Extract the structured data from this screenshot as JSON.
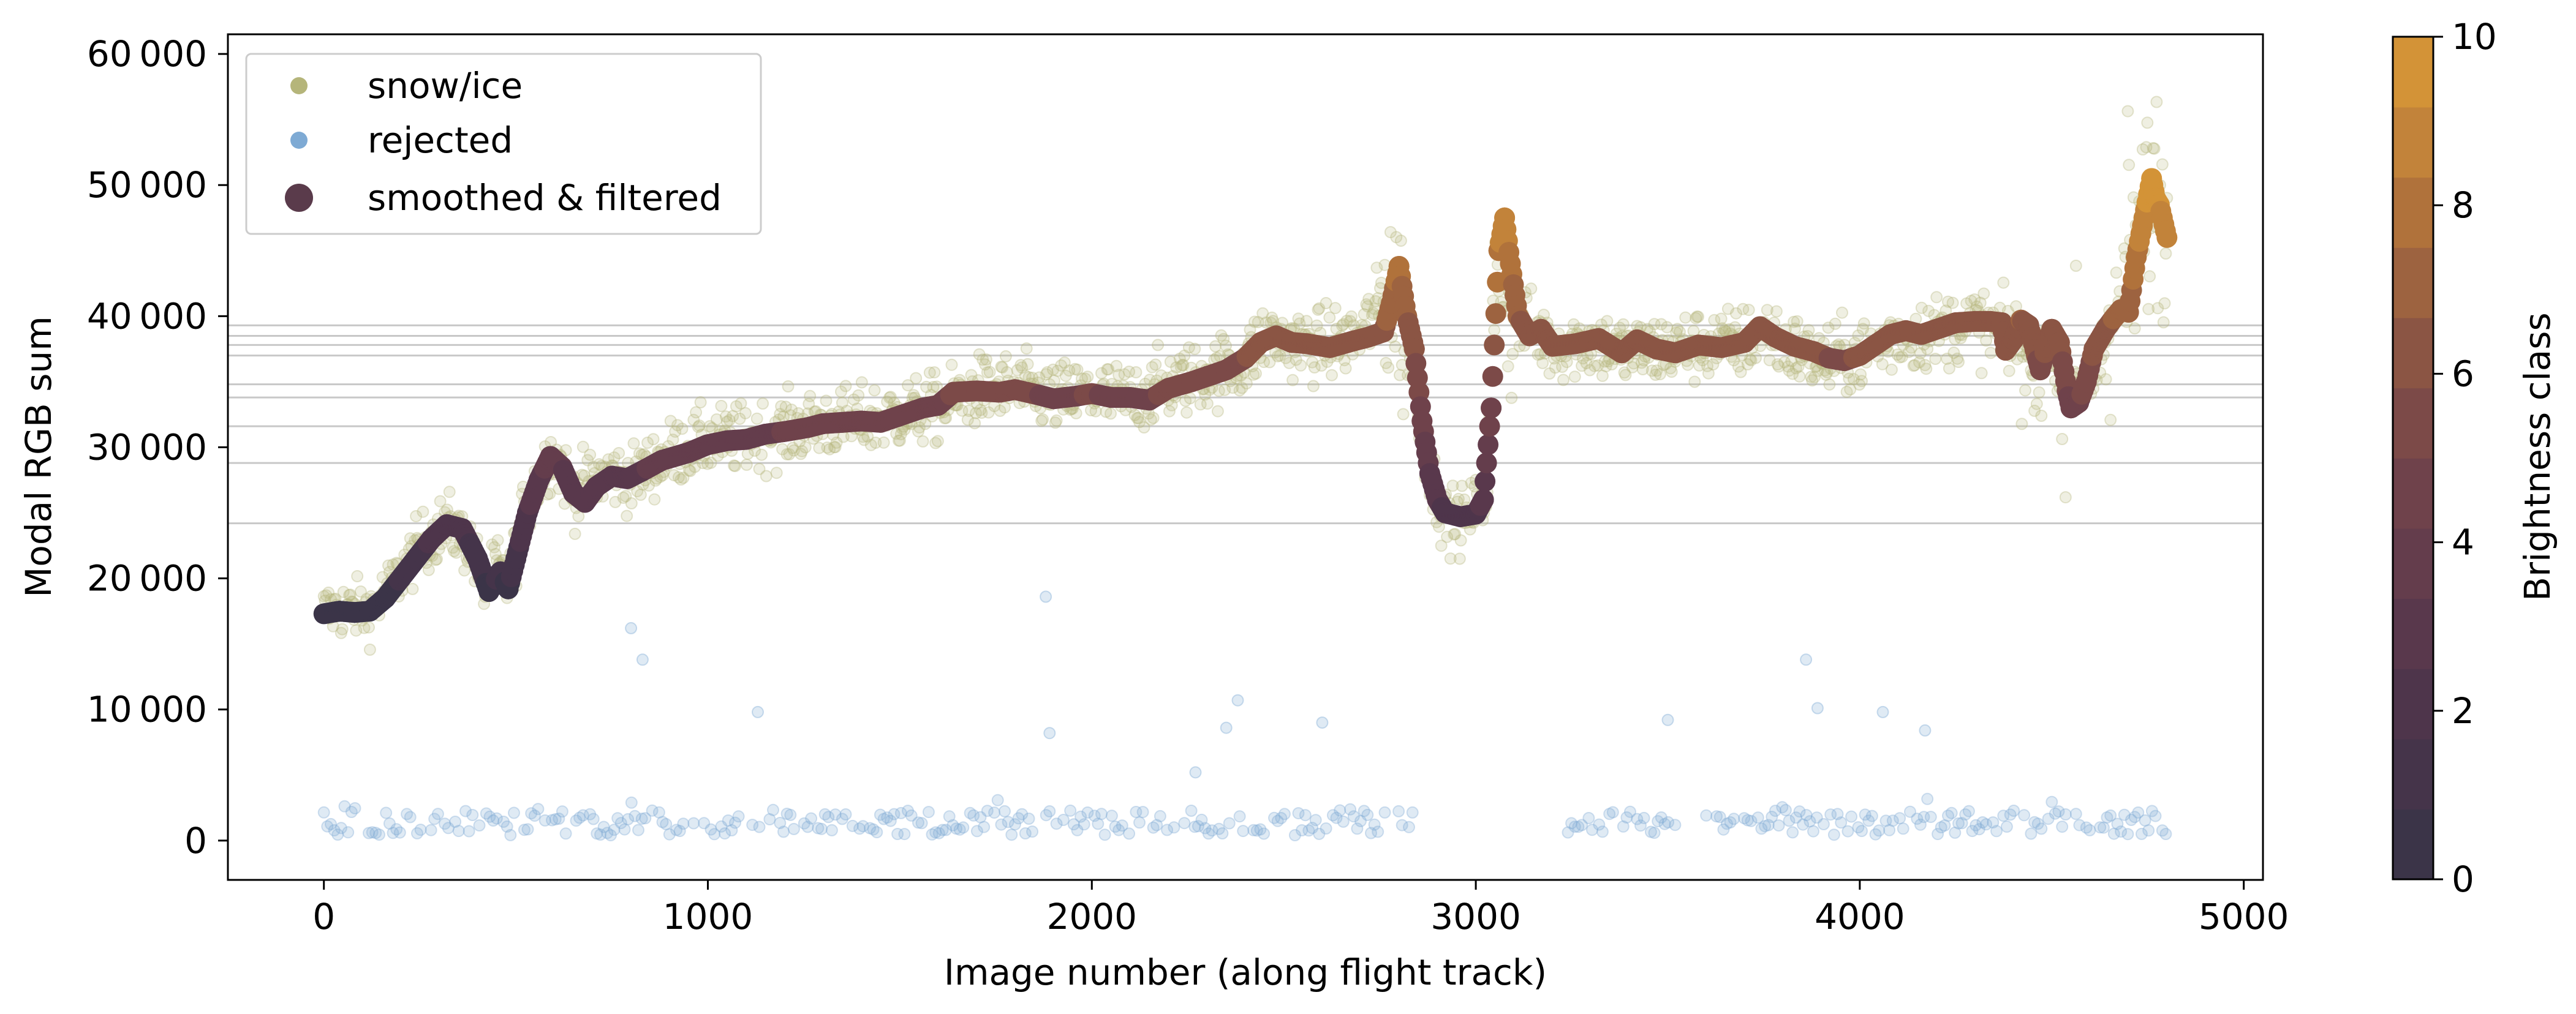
{
  "chart_data": {
    "type": "scatter",
    "xlabel": "Image number (along flight track)",
    "ylabel": "Modal RGB sum",
    "xlim": [
      -250,
      5050
    ],
    "ylim": [
      -3000,
      61500
    ],
    "x_ticks": [
      0,
      1000,
      2000,
      3000,
      4000,
      5000
    ],
    "x_tick_labels": [
      "0",
      "1000",
      "2000",
      "3000",
      "4000",
      "5000"
    ],
    "y_ticks": [
      0,
      10000,
      20000,
      30000,
      40000,
      50000,
      60000
    ],
    "y_tick_labels": [
      "0",
      "10 000",
      "20 000",
      "30 000",
      "40 000",
      "50 000",
      "60 000"
    ],
    "legend_position": "top-left",
    "grid": false,
    "class_threshold_lines": [
      24200,
      28800,
      31600,
      33800,
      34800,
      37000,
      37800,
      38500,
      39300
    ],
    "series": [
      {
        "name": "snow/ice",
        "style": "scatter",
        "color": "#b5b57a",
        "alpha": 0.3,
        "description_points": [
          [
            0,
            17500
          ],
          [
            60,
            17700
          ],
          [
            120,
            17500
          ],
          [
            180,
            19500
          ],
          [
            250,
            22500
          ],
          [
            320,
            24200
          ],
          [
            380,
            22500
          ],
          [
            420,
            19000
          ],
          [
            450,
            21000
          ],
          [
            480,
            19500
          ],
          [
            520,
            25000
          ],
          [
            580,
            29000
          ],
          [
            600,
            29500
          ],
          [
            650,
            26500
          ],
          [
            700,
            27500
          ],
          [
            750,
            28000
          ],
          [
            800,
            27500
          ],
          [
            900,
            29500
          ],
          [
            1000,
            30500
          ],
          [
            1100,
            30700
          ],
          [
            1200,
            31300
          ],
          [
            1300,
            31800
          ],
          [
            1400,
            32000
          ],
          [
            1500,
            32500
          ],
          [
            1600,
            33000
          ],
          [
            1700,
            34300
          ],
          [
            1800,
            34500
          ],
          [
            1900,
            33800
          ],
          [
            2000,
            34000
          ],
          [
            2100,
            33700
          ],
          [
            2200,
            34800
          ],
          [
            2300,
            35600
          ],
          [
            2400,
            36500
          ],
          [
            2450,
            38500
          ],
          [
            2500,
            38000
          ],
          [
            2600,
            37800
          ],
          [
            2700,
            38500
          ],
          [
            2780,
            42500
          ],
          [
            2830,
            37000
          ],
          [
            2880,
            28000
          ],
          [
            2920,
            24500
          ],
          [
            2980,
            24500
          ],
          [
            3030,
            27000
          ],
          [
            3060,
            46000
          ],
          [
            3100,
            40000
          ],
          [
            3200,
            37800
          ],
          [
            3300,
            38000
          ],
          [
            3400,
            37200
          ],
          [
            3500,
            37500
          ],
          [
            3600,
            37800
          ],
          [
            3700,
            38000
          ],
          [
            3750,
            39000
          ],
          [
            3800,
            37800
          ],
          [
            3900,
            36500
          ],
          [
            4000,
            37000
          ],
          [
            4100,
            38500
          ],
          [
            4200,
            38800
          ],
          [
            4300,
            39500
          ],
          [
            4380,
            38500
          ],
          [
            4420,
            38000
          ],
          [
            4450,
            36000
          ],
          [
            4500,
            38000
          ],
          [
            4550,
            33500
          ],
          [
            4600,
            35000
          ],
          [
            4650,
            39000
          ],
          [
            4700,
            43000
          ],
          [
            4750,
            48000
          ],
          [
            4780,
            50000
          ],
          [
            4800,
            46500
          ]
        ]
      },
      {
        "name": "rejected",
        "style": "scatter",
        "color": "#7eaad4",
        "alpha": 0.3,
        "x_range": [
          0,
          4800
        ],
        "typical_y_range": [
          0,
          3000
        ],
        "outliers": [
          [
            800,
            16200
          ],
          [
            830,
            13800
          ],
          [
            1130,
            9800
          ],
          [
            1880,
            18600
          ],
          [
            1890,
            8200
          ],
          [
            2270,
            5200
          ],
          [
            2350,
            8600
          ],
          [
            2380,
            10700
          ],
          [
            2600,
            9000
          ],
          [
            3500,
            9200
          ],
          [
            3860,
            13800
          ],
          [
            3890,
            10100
          ],
          [
            4060,
            9800
          ],
          [
            4170,
            8400
          ]
        ]
      },
      {
        "name": "smoothed & filtered",
        "style": "line",
        "color_scale": "Brightness class",
        "points": [
          [
            0,
            17300
          ],
          [
            40,
            17500
          ],
          [
            80,
            17400
          ],
          [
            120,
            17500
          ],
          [
            160,
            18500
          ],
          [
            200,
            20000
          ],
          [
            240,
            21500
          ],
          [
            280,
            23000
          ],
          [
            320,
            24100
          ],
          [
            360,
            23800
          ],
          [
            400,
            21500
          ],
          [
            430,
            19000
          ],
          [
            460,
            20500
          ],
          [
            480,
            19200
          ],
          [
            500,
            21500
          ],
          [
            530,
            25000
          ],
          [
            560,
            27500
          ],
          [
            590,
            29300
          ],
          [
            620,
            28500
          ],
          [
            650,
            26500
          ],
          [
            680,
            25800
          ],
          [
            710,
            27000
          ],
          [
            750,
            27800
          ],
          [
            790,
            27600
          ],
          [
            830,
            28200
          ],
          [
            880,
            29000
          ],
          [
            950,
            29600
          ],
          [
            1000,
            30200
          ],
          [
            1050,
            30500
          ],
          [
            1100,
            30600
          ],
          [
            1150,
            31000
          ],
          [
            1200,
            31200
          ],
          [
            1260,
            31500
          ],
          [
            1300,
            31800
          ],
          [
            1350,
            31900
          ],
          [
            1400,
            32000
          ],
          [
            1450,
            31900
          ],
          [
            1500,
            32400
          ],
          [
            1560,
            33000
          ],
          [
            1600,
            33200
          ],
          [
            1640,
            34200
          ],
          [
            1700,
            34300
          ],
          [
            1760,
            34200
          ],
          [
            1800,
            34400
          ],
          [
            1860,
            34000
          ],
          [
            1900,
            33700
          ],
          [
            1960,
            33900
          ],
          [
            2000,
            34100
          ],
          [
            2050,
            33800
          ],
          [
            2100,
            33800
          ],
          [
            2150,
            33600
          ],
          [
            2200,
            34500
          ],
          [
            2260,
            35000
          ],
          [
            2300,
            35400
          ],
          [
            2350,
            35900
          ],
          [
            2400,
            36800
          ],
          [
            2440,
            38000
          ],
          [
            2480,
            38500
          ],
          [
            2520,
            38000
          ],
          [
            2560,
            37900
          ],
          [
            2620,
            37600
          ],
          [
            2680,
            38100
          ],
          [
            2720,
            38400
          ],
          [
            2760,
            38800
          ],
          [
            2780,
            41000
          ],
          [
            2800,
            43800
          ],
          [
            2820,
            40000
          ],
          [
            2840,
            37500
          ],
          [
            2860,
            32000
          ],
          [
            2880,
            28000
          ],
          [
            2900,
            26000
          ],
          [
            2920,
            25000
          ],
          [
            2960,
            24700
          ],
          [
            3000,
            24900
          ],
          [
            3020,
            26000
          ],
          [
            3040,
            33000
          ],
          [
            3060,
            45000
          ],
          [
            3075,
            47500
          ],
          [
            3090,
            44000
          ],
          [
            3110,
            40000
          ],
          [
            3140,
            38500
          ],
          [
            3170,
            39000
          ],
          [
            3200,
            37700
          ],
          [
            3260,
            37900
          ],
          [
            3320,
            38300
          ],
          [
            3380,
            37200
          ],
          [
            3420,
            38200
          ],
          [
            3470,
            37500
          ],
          [
            3520,
            37200
          ],
          [
            3580,
            37800
          ],
          [
            3640,
            37600
          ],
          [
            3700,
            38000
          ],
          [
            3740,
            39200
          ],
          [
            3780,
            38400
          ],
          [
            3830,
            37700
          ],
          [
            3880,
            37300
          ],
          [
            3920,
            36800
          ],
          [
            3960,
            36600
          ],
          [
            4000,
            37000
          ],
          [
            4040,
            37800
          ],
          [
            4080,
            38600
          ],
          [
            4120,
            38900
          ],
          [
            4160,
            38600
          ],
          [
            4200,
            39000
          ],
          [
            4250,
            39500
          ],
          [
            4300,
            39600
          ],
          [
            4340,
            39600
          ],
          [
            4370,
            39500
          ],
          [
            4380,
            37400
          ],
          [
            4400,
            38200
          ],
          [
            4420,
            39700
          ],
          [
            4440,
            39300
          ],
          [
            4460,
            37000
          ],
          [
            4470,
            35900
          ],
          [
            4490,
            38100
          ],
          [
            4500,
            39000
          ],
          [
            4520,
            38000
          ],
          [
            4540,
            34300
          ],
          [
            4550,
            33000
          ],
          [
            4570,
            33400
          ],
          [
            4590,
            35000
          ],
          [
            4610,
            37500
          ],
          [
            4640,
            39000
          ],
          [
            4660,
            39800
          ],
          [
            4680,
            40500
          ],
          [
            4700,
            40300
          ],
          [
            4720,
            44500
          ],
          [
            4740,
            47500
          ],
          [
            4760,
            50500
          ],
          [
            4770,
            49000
          ],
          [
            4780,
            48500
          ],
          [
            4800,
            46000
          ]
        ]
      }
    ],
    "colorbar": {
      "label": "Brightness class",
      "range": [
        0,
        10
      ],
      "ticks": [
        0,
        2,
        4,
        6,
        8,
        10
      ],
      "tick_labels": [
        "0",
        "2",
        "4",
        "6",
        "8",
        "10"
      ],
      "colors": [
        "#3b3448",
        "#45344a",
        "#4e354b",
        "#59384c",
        "#643d4c",
        "#6f424b",
        "#7c4a48",
        "#8b5544",
        "#9d6340",
        "#b0723b",
        "#c2833a",
        "#d39337"
      ]
    }
  }
}
